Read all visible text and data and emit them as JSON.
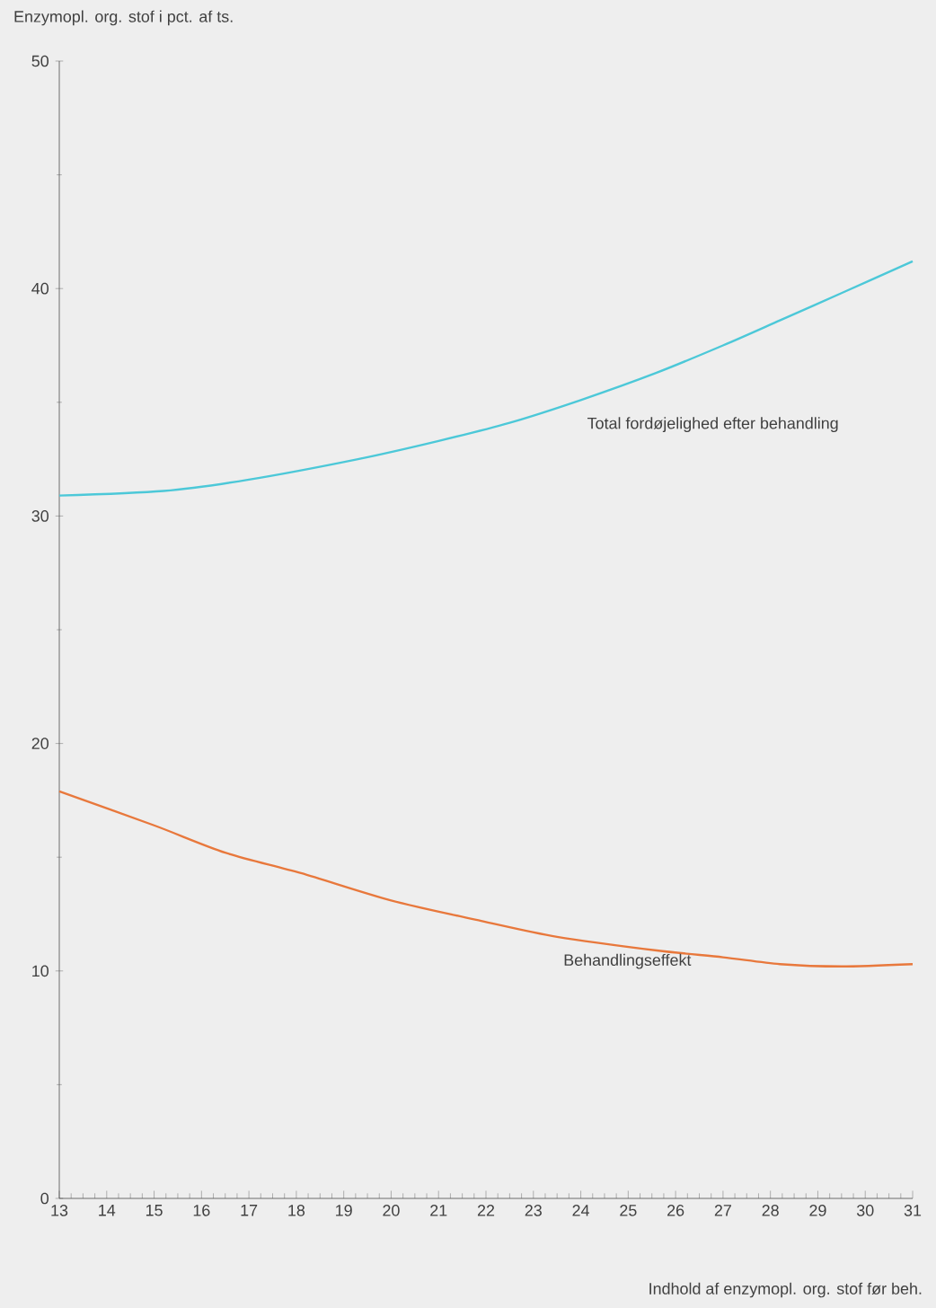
{
  "chart_data": {
    "type": "line",
    "ylabel": "Enzymopl. org. stof i pct. af ts.",
    "xlabel": "Indhold af enzymopl. org. stof før beh.",
    "xlim": [
      13,
      31
    ],
    "xticks": [
      13,
      14,
      15,
      16,
      17,
      18,
      19,
      20,
      21,
      22,
      23,
      24,
      25,
      26,
      27,
      28,
      29,
      30,
      31
    ],
    "ylim": [
      0,
      50
    ],
    "yticks": [
      0,
      10,
      20,
      30,
      40,
      50
    ],
    "grid": false,
    "marker": "none",
    "line_style": "solid",
    "series": [
      {
        "name": "Total fordøjelighed efter behandling",
        "color": "#4cc8d8",
        "x": [
          13,
          15.2,
          17,
          19.3,
          21,
          22.5,
          24,
          25.6,
          27,
          28.2,
          29.5,
          31
        ],
        "values": [
          30.9,
          31.1,
          31.6,
          32.5,
          33.3,
          34.1,
          35.1,
          36.3,
          37.5,
          38.6,
          39.8,
          41.2
        ]
      },
      {
        "name": "Behandlingseffekt",
        "color": "#e8783c",
        "x": [
          13,
          15,
          16.5,
          18.1,
          20,
          21.9,
          23.5,
          25.6,
          27,
          28.2,
          29.5,
          31
        ],
        "values": [
          17.9,
          16.4,
          15.2,
          14.3,
          13.1,
          12.2,
          11.5,
          10.9,
          10.6,
          10.3,
          10.2,
          10.3
        ]
      }
    ]
  }
}
